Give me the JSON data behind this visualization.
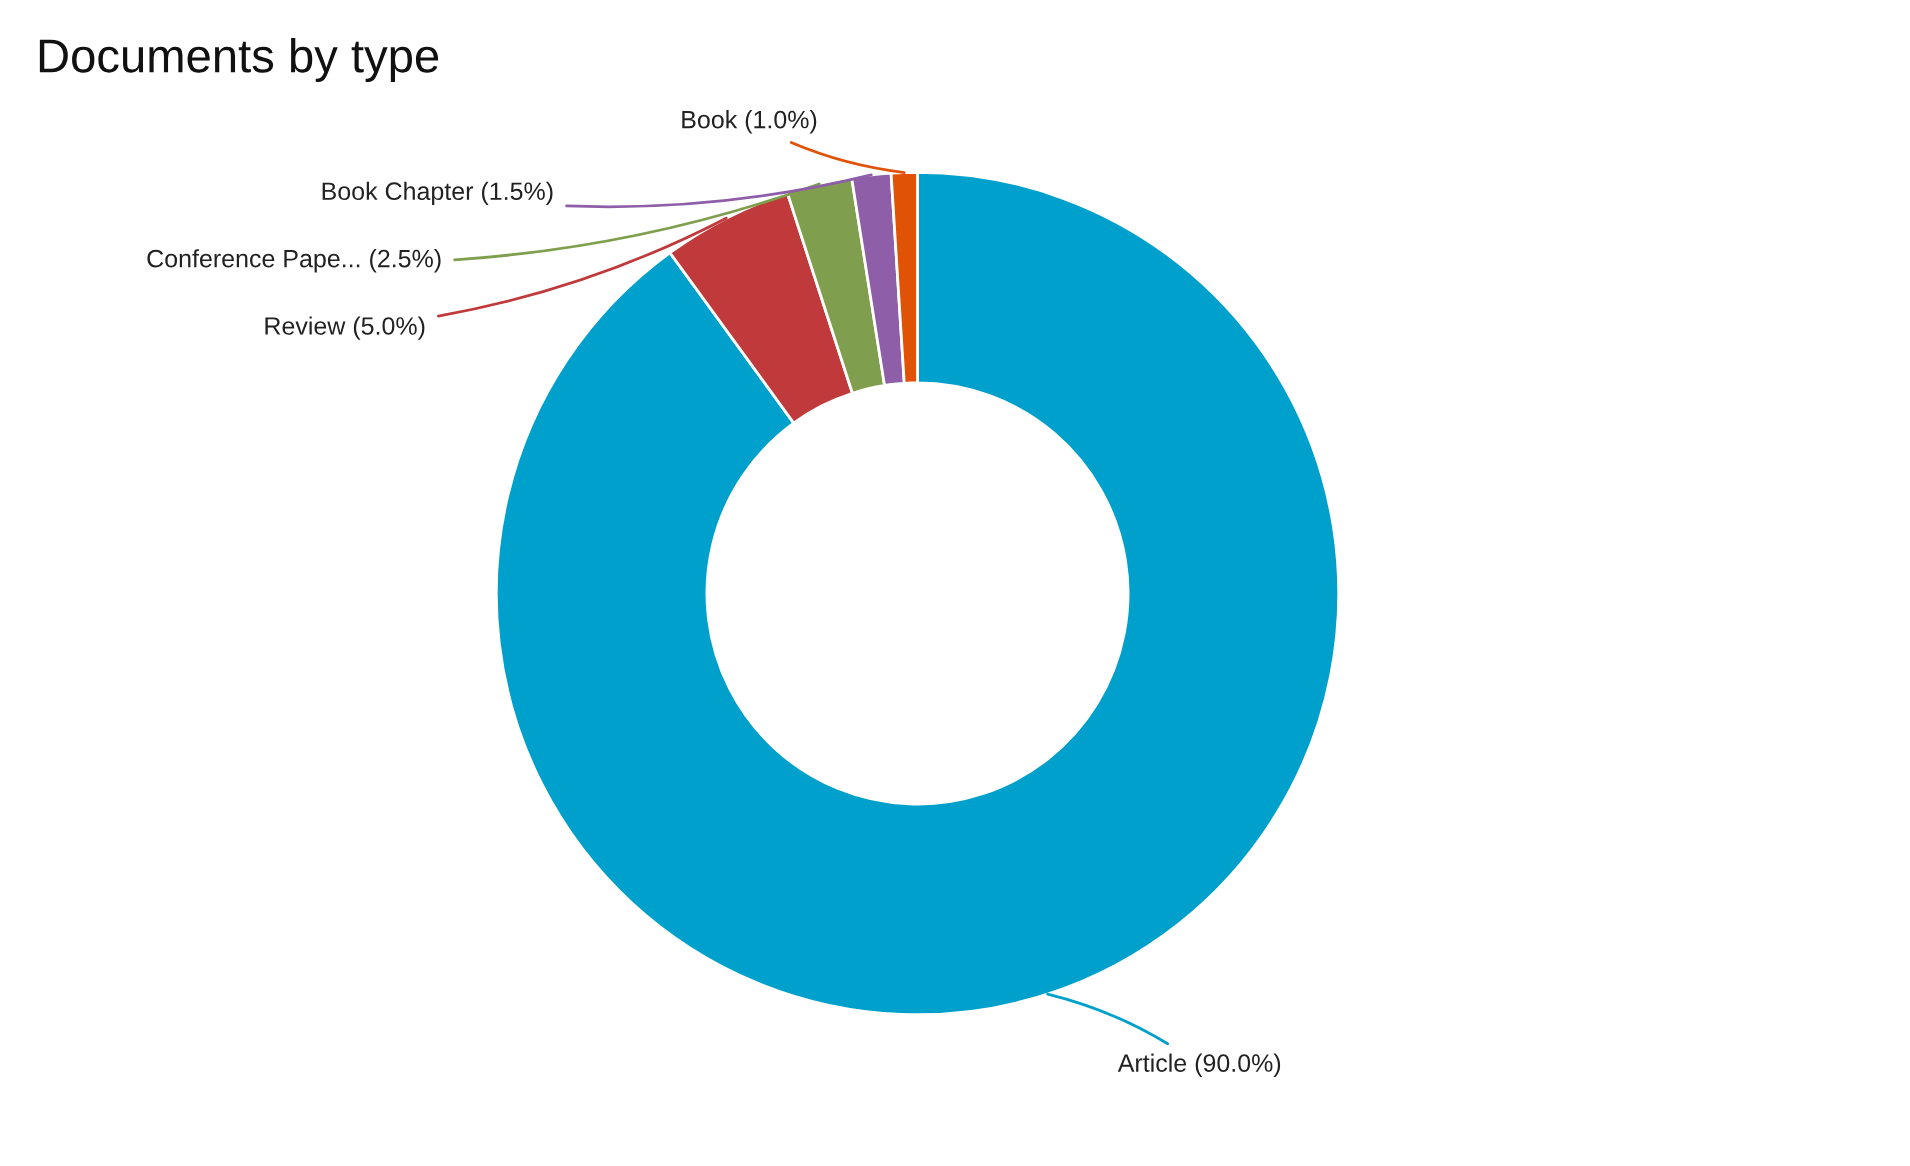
{
  "chart_data": {
    "type": "donut",
    "title": "Documents by type",
    "categories": [
      "Article (90.0%)",
      "Review (5.0%)",
      "Conference Pape... (2.5%)",
      "Book Chapter (1.5%)",
      "Book (1.0%)"
    ],
    "values": [
      90.0,
      5.0,
      2.5,
      1.5,
      1.0
    ],
    "colors": [
      "#00a0cc",
      "#c0393b",
      "#7f9f4f",
      "#8e5ea8",
      "#e05206"
    ]
  }
}
